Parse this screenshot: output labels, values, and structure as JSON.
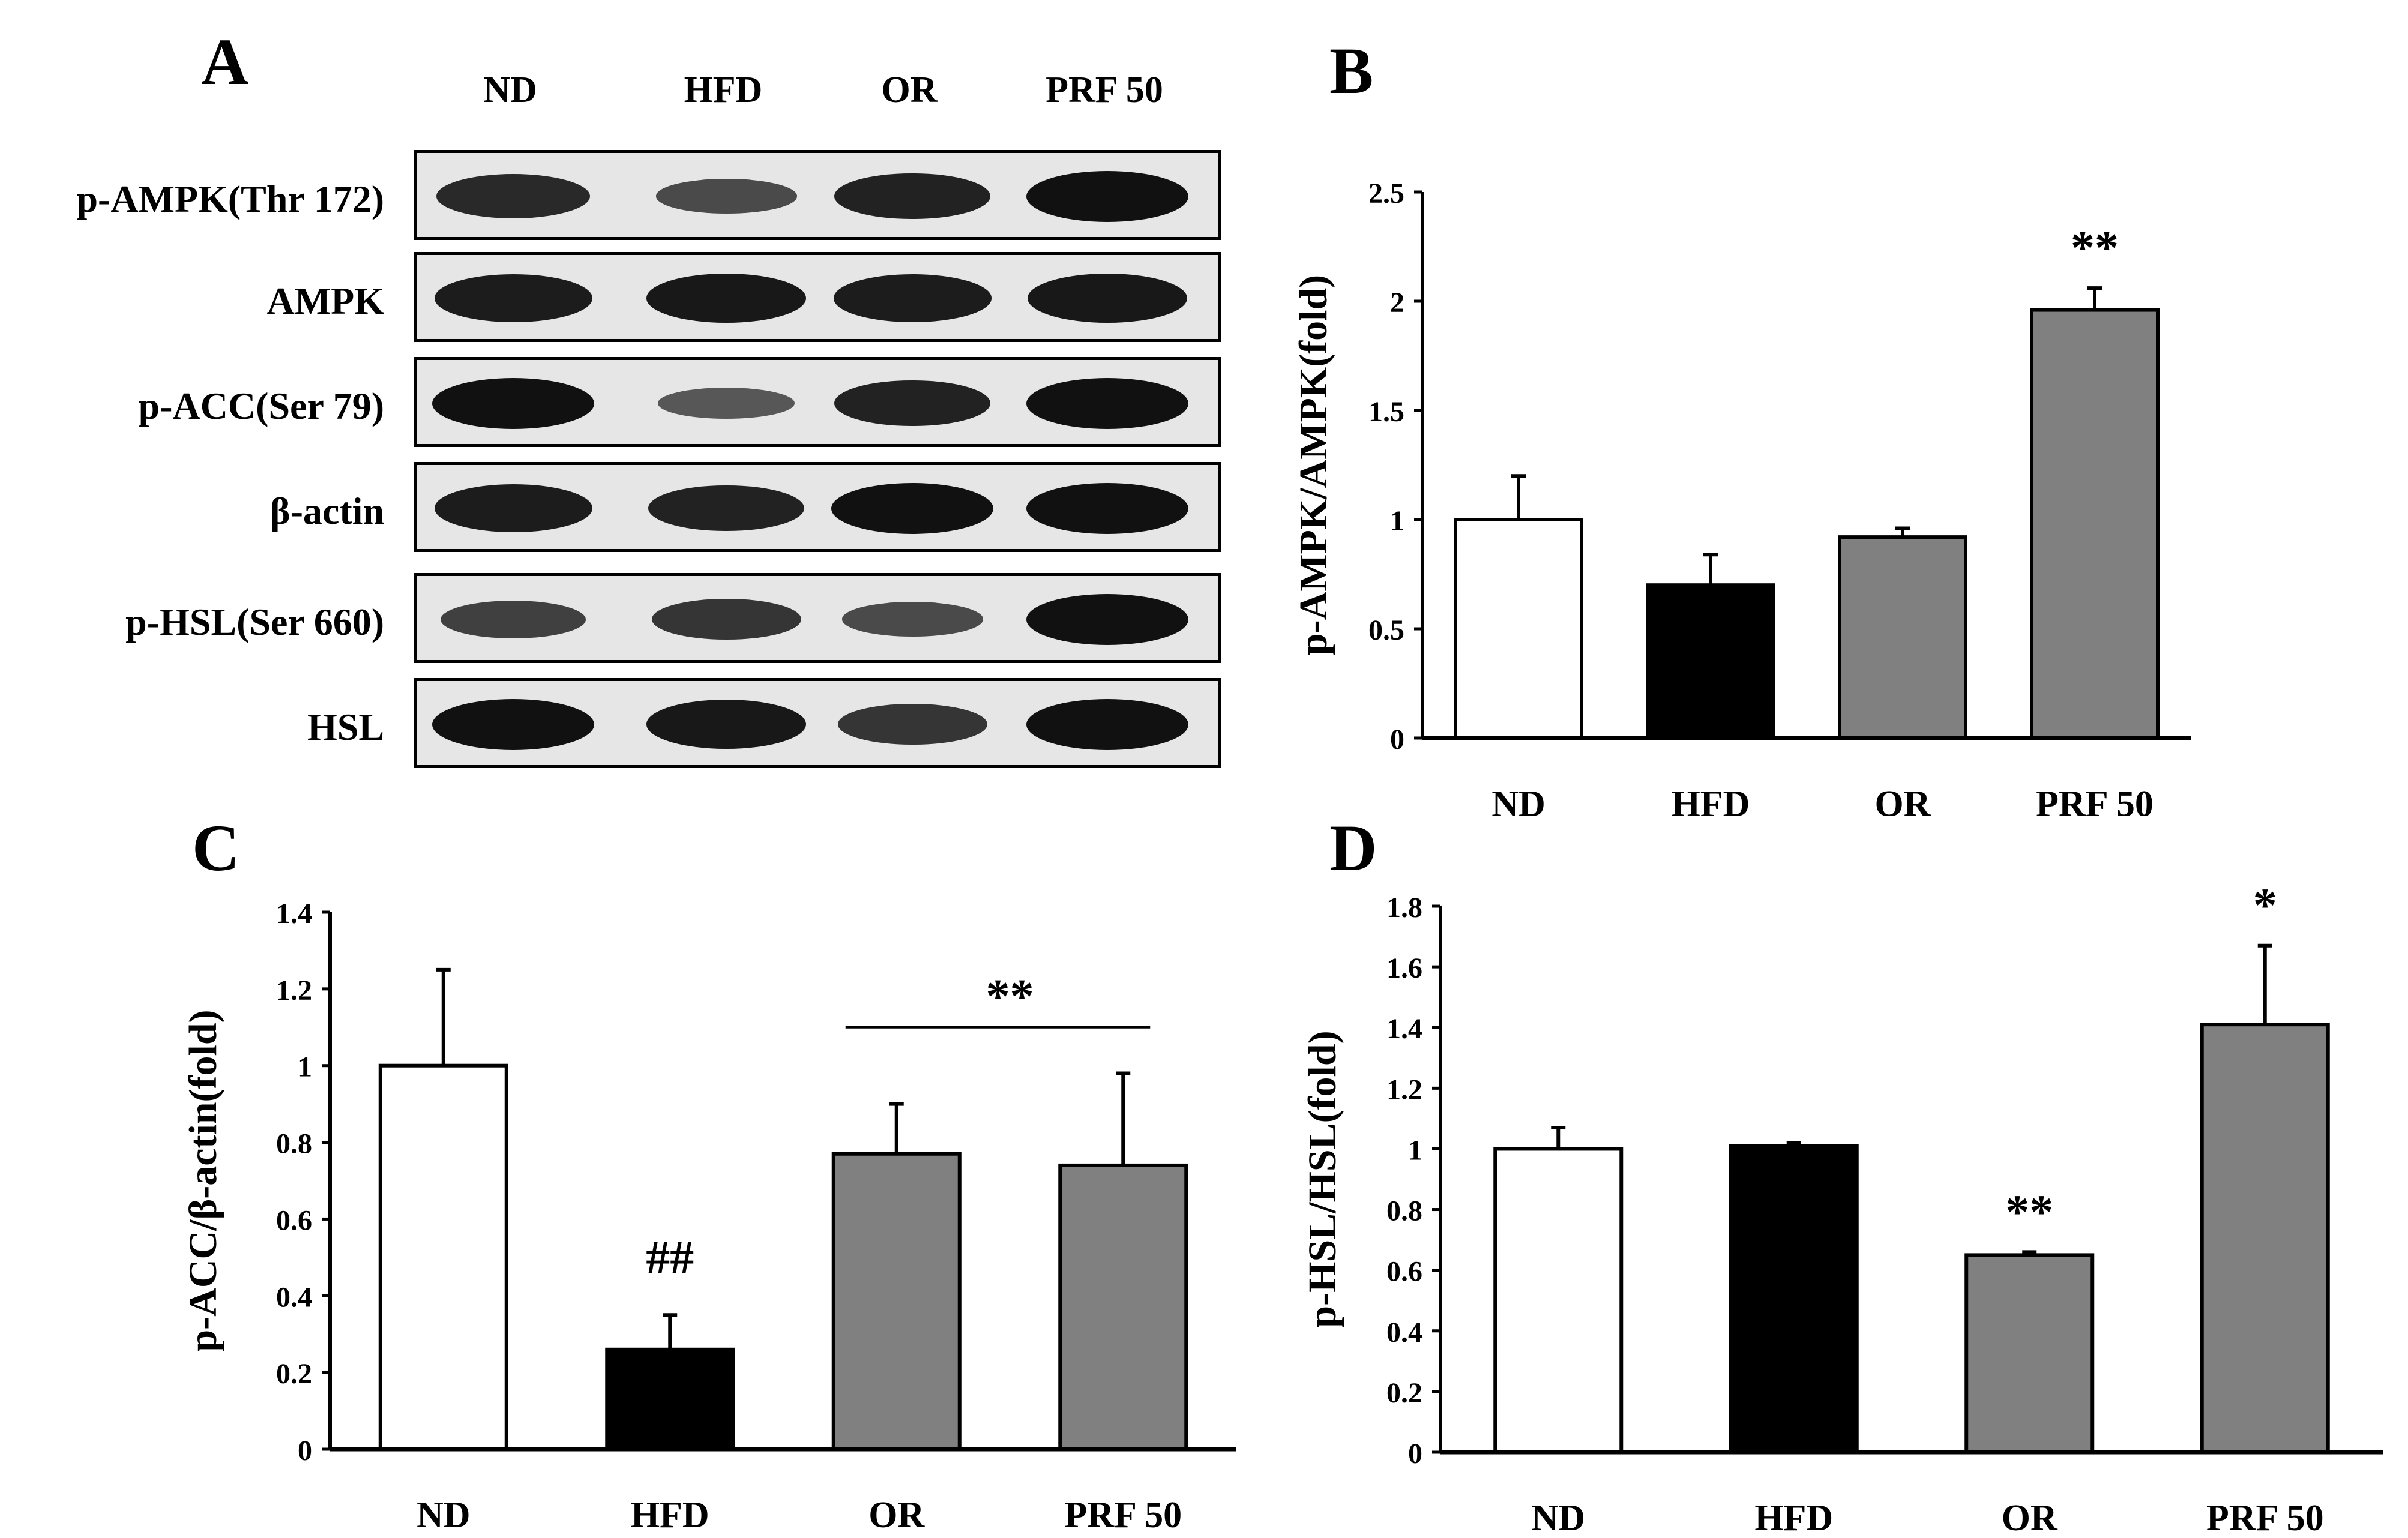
{
  "panels": {
    "A": "A",
    "B": "B",
    "C": "C",
    "D": "D"
  },
  "groups": [
    "ND",
    "HFD",
    "OR",
    "PRF 50"
  ],
  "bar_colors": {
    "ND": "#ffffff",
    "HFD": "#000000",
    "OR": "#808080",
    "PRF 50": "#808080"
  },
  "western_blot": {
    "lanes": [
      "ND",
      "HFD",
      "OR",
      "PRF 50"
    ],
    "rows": [
      {
        "label": "p-AMPK(Thr 172)",
        "intensity": [
          0.8,
          0.5,
          0.85,
          1.0
        ]
      },
      {
        "label": "AMPK",
        "intensity": [
          0.9,
          0.95,
          0.9,
          0.95
        ]
      },
      {
        "label": "p-ACC(Ser 79)",
        "intensity": [
          1.0,
          0.4,
          0.85,
          1.0
        ]
      },
      {
        "label": "β-actin",
        "intensity": [
          0.9,
          0.85,
          1.0,
          1.0
        ]
      },
      {
        "label": "p-HSL(Ser 660)",
        "intensity": [
          0.6,
          0.7,
          0.5,
          1.0
        ]
      },
      {
        "label": "HSL",
        "intensity": [
          1.0,
          0.95,
          0.7,
          1.0
        ]
      }
    ]
  },
  "chart_data": [
    {
      "panel": "B",
      "type": "bar",
      "title": "",
      "xlabel": "",
      "ylabel": "p-AMPK/AMPK(fold)",
      "categories": [
        "ND",
        "HFD",
        "OR",
        "PRF 50"
      ],
      "values": [
        1.0,
        0.7,
        0.92,
        1.96
      ],
      "error_upper": [
        0.2,
        0.14,
        0.04,
        0.1
      ],
      "annotations": [
        {
          "category": "PRF 50",
          "text": "**"
        }
      ],
      "ylim": [
        0,
        2.5
      ],
      "yticks": [
        "0",
        "0.5",
        "1",
        "1.5",
        "2",
        "2.5"
      ],
      "grid": false,
      "legend": "none"
    },
    {
      "panel": "C",
      "type": "bar",
      "title": "",
      "xlabel": "",
      "ylabel": "p-ACC/β-actin(fold)",
      "categories": [
        "ND",
        "HFD",
        "OR",
        "PRF 50"
      ],
      "values": [
        1.0,
        0.26,
        0.77,
        0.74
      ],
      "error_upper": [
        0.25,
        0.09,
        0.13,
        0.24
      ],
      "annotations": [
        {
          "category": "HFD",
          "text": "##"
        },
        {
          "category": "OR–PRF 50",
          "text": "**",
          "bracket": true
        }
      ],
      "ylim": [
        0,
        1.4
      ],
      "yticks": [
        "0",
        "0.2",
        "0.4",
        "0.6",
        "0.8",
        "1",
        "1.2",
        "1.4"
      ],
      "grid": false,
      "legend": "none"
    },
    {
      "panel": "D",
      "type": "bar",
      "title": "",
      "xlabel": "",
      "ylabel": "p-HSL/HSL(fold)",
      "categories": [
        "ND",
        "HFD",
        "OR",
        "PRF 50"
      ],
      "values": [
        1.0,
        1.01,
        0.65,
        1.41
      ],
      "error_upper": [
        0.07,
        0.01,
        0.01,
        0.26
      ],
      "annotations": [
        {
          "category": "OR",
          "text": "**"
        },
        {
          "category": "PRF 50",
          "text": "*"
        }
      ],
      "ylim": [
        0,
        1.8
      ],
      "yticks": [
        "0",
        "0.2",
        "0.4",
        "0.6",
        "0.8",
        "1",
        "1.2",
        "1.4",
        "1.6",
        "1.8"
      ],
      "grid": false,
      "legend": "none"
    }
  ]
}
